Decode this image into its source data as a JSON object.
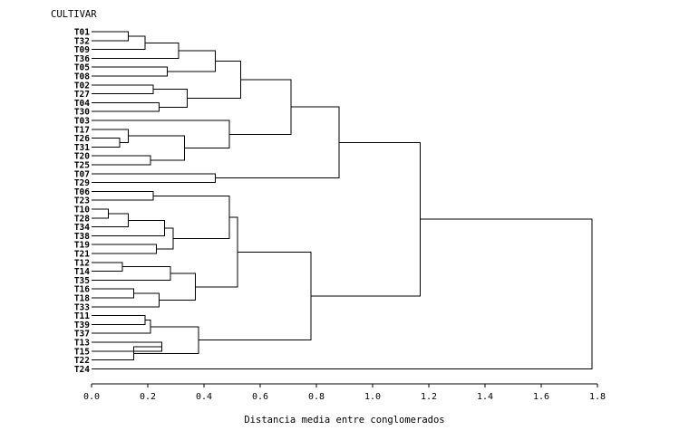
{
  "chart_data": {
    "type": "dendrogram",
    "title": "",
    "ylabel": "CULTIVAR",
    "xlabel": "Distancia media entre conglomerados",
    "xlim": [
      0,
      1.8
    ],
    "xticks": [
      "0.0",
      "0.2",
      "0.4",
      "0.6",
      "0.8",
      "1.0",
      "1.2",
      "1.4",
      "1.6",
      "1.8"
    ],
    "leaves": [
      "T01",
      "T32",
      "T09",
      "T36",
      "T05",
      "T08",
      "T02",
      "T27",
      "T04",
      "T30",
      "T03",
      "T17",
      "T26",
      "T31",
      "T20",
      "T25",
      "T07",
      "T29",
      "T06",
      "T23",
      "T10",
      "T28",
      "T34",
      "T38",
      "T19",
      "T21",
      "T12",
      "T14",
      "T35",
      "T16",
      "T18",
      "T33",
      "T11",
      "T39",
      "T37",
      "T13",
      "T15",
      "T22",
      "T24"
    ],
    "merges": [
      {
        "a": "T01",
        "b": "T32",
        "height": 0.13
      },
      {
        "a": "T01",
        "b": "T09",
        "height": 0.19
      },
      {
        "a": "T01",
        "b": "T36",
        "height": 0.31
      },
      {
        "a": "T05",
        "b": "T08",
        "height": 0.27
      },
      {
        "a": "T01",
        "b": "T05",
        "height": 0.44
      },
      {
        "a": "T02",
        "b": "T27",
        "height": 0.22
      },
      {
        "a": "T04",
        "b": "T30",
        "height": 0.24
      },
      {
        "a": "T02",
        "b": "T04",
        "height": 0.34
      },
      {
        "a": "T01",
        "b": "T02",
        "height": 0.53
      },
      {
        "a": "T26",
        "b": "T31",
        "height": 0.1
      },
      {
        "a": "T17",
        "b": "T26",
        "height": 0.13
      },
      {
        "a": "T20",
        "b": "T25",
        "height": 0.21
      },
      {
        "a": "T17",
        "b": "T20",
        "height": 0.33
      },
      {
        "a": "T03",
        "b": "T17",
        "height": 0.49
      },
      {
        "a": "T01",
        "b": "T03",
        "height": 0.71
      },
      {
        "a": "T07",
        "b": "T29",
        "height": 0.44
      },
      {
        "a": "T01",
        "b": "T07",
        "height": 0.88
      },
      {
        "a": "T06",
        "b": "T23",
        "height": 0.22
      },
      {
        "a": "T10",
        "b": "T28",
        "height": 0.06
      },
      {
        "a": "T10",
        "b": "T34",
        "height": 0.13
      },
      {
        "a": "T10",
        "b": "T38",
        "height": 0.26
      },
      {
        "a": "T19",
        "b": "T21",
        "height": 0.23
      },
      {
        "a": "T10",
        "b": "T19",
        "height": 0.29
      },
      {
        "a": "T06",
        "b": "T10",
        "height": 0.49
      },
      {
        "a": "T12",
        "b": "T14",
        "height": 0.11
      },
      {
        "a": "T12",
        "b": "T35",
        "height": 0.28
      },
      {
        "a": "T16",
        "b": "T18",
        "height": 0.15
      },
      {
        "a": "T16",
        "b": "T33",
        "height": 0.24
      },
      {
        "a": "T12",
        "b": "T16",
        "height": 0.37
      },
      {
        "a": "T06",
        "b": "T12",
        "height": 0.52
      },
      {
        "a": "T11",
        "b": "T39",
        "height": 0.19
      },
      {
        "a": "T11",
        "b": "T37",
        "height": 0.21
      },
      {
        "a": "T13",
        "b": "T15",
        "height": 0.25
      },
      {
        "a": "T13",
        "b": "T22",
        "height": 0.15
      },
      {
        "a": "T11",
        "b": "T13",
        "height": 0.38
      },
      {
        "a": "T06",
        "b": "T11",
        "height": 0.78
      },
      {
        "a": "T01",
        "b": "T06",
        "height": 1.17
      },
      {
        "a": "T01",
        "b": "T24",
        "height": 1.78
      }
    ]
  }
}
